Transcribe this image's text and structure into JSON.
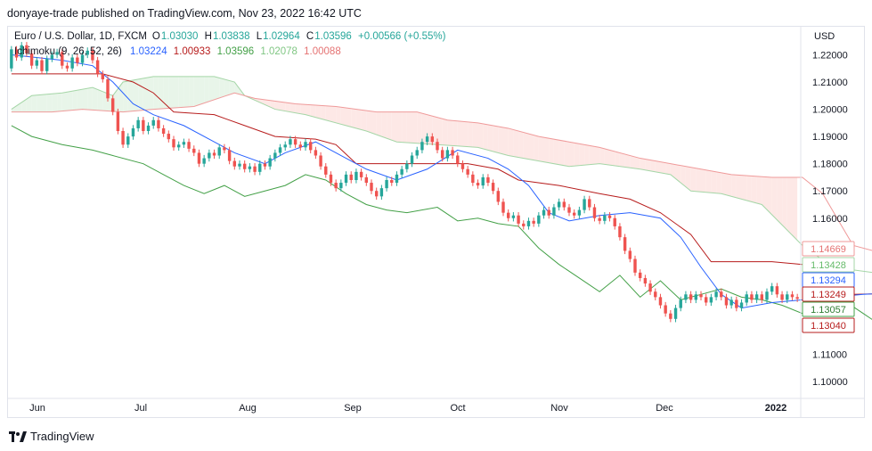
{
  "header": {
    "published": "donyaye-trade published on TradingView.com, Nov 23, 2022 16:42 UTC"
  },
  "legend": {
    "symbol": "Euro / U.S. Dollar, 1D, FXCM",
    "open_label": "O",
    "open": "1.03030",
    "high_label": "H",
    "high": "1.03838",
    "low_label": "L",
    "low": "1.02964",
    "close_label": "C",
    "close": "1.03596",
    "change": "+0.00566 (+0.55%)",
    "indicator": "Ichimoku (9, 26, 52, 26)",
    "ind_values": [
      "1.03224",
      "1.00933",
      "1.03596",
      "1.02078",
      "1.00088"
    ]
  },
  "footer": {
    "brand": "TradingView"
  },
  "colors": {
    "conversion": "#2962ff",
    "base": "#b71c1c",
    "lagging": "#43a047",
    "span_a": "#a5d6a7",
    "span_b": "#ef9a9a",
    "cloud_bull": "#e8f5e9",
    "cloud_bear": "#fde8e6",
    "candle_up": "#26a69a",
    "candle_down": "#ef5350"
  },
  "chart_data": {
    "type": "candlestick",
    "y_unit": "USD",
    "ylim": [
      1.0938,
      1.2303
    ],
    "y_ticks": [
      "1.22000",
      "1.21000",
      "1.20000",
      "1.19000",
      "1.18000",
      "1.17000",
      "1.16000",
      "1.11000",
      "1.10000"
    ],
    "x_ticks": [
      "Jun",
      "Jul",
      "Aug",
      "Sep",
      "Oct",
      "Nov",
      "Dec",
      "2022"
    ],
    "x_tick_bold": "2022",
    "right_labels": [
      {
        "text": "1.14669",
        "kind": "span_b"
      },
      {
        "text": "1.13428",
        "kind": "span_a"
      },
      {
        "text": "1.13294",
        "kind": "conversion"
      },
      {
        "text": "1.13249",
        "kind": "base"
      },
      {
        "text": "1.13057",
        "kind": "lagging"
      },
      {
        "text": "1.13040",
        "kind": "close"
      }
    ],
    "candles": [
      {
        "o": 1.215,
        "c": 1.222
      },
      {
        "o": 1.222,
        "c": 1.219
      },
      {
        "o": 1.219,
        "c": 1.2235
      },
      {
        "o": 1.2235,
        "c": 1.2205
      },
      {
        "o": 1.2205,
        "c": 1.216
      },
      {
        "o": 1.216,
        "c": 1.218
      },
      {
        "o": 1.218,
        "c": 1.214
      },
      {
        "o": 1.214,
        "c": 1.2185
      },
      {
        "o": 1.2185,
        "c": 1.22
      },
      {
        "o": 1.22,
        "c": 1.221
      },
      {
        "o": 1.221,
        "c": 1.216
      },
      {
        "o": 1.216,
        "c": 1.215
      },
      {
        "o": 1.215,
        "c": 1.219
      },
      {
        "o": 1.219,
        "c": 1.217
      },
      {
        "o": 1.217,
        "c": 1.22
      },
      {
        "o": 1.22,
        "c": 1.2215
      },
      {
        "o": 1.2215,
        "c": 1.218
      },
      {
        "o": 1.218,
        "c": 1.213
      },
      {
        "o": 1.213,
        "c": 1.211
      },
      {
        "o": 1.211,
        "c": 1.204
      },
      {
        "o": 1.204,
        "c": 1.199
      },
      {
        "o": 1.199,
        "c": 1.192
      },
      {
        "o": 1.192,
        "c": 1.187
      },
      {
        "o": 1.187,
        "c": 1.19
      },
      {
        "o": 1.19,
        "c": 1.193
      },
      {
        "o": 1.193,
        "c": 1.196
      },
      {
        "o": 1.196,
        "c": 1.192
      },
      {
        "o": 1.192,
        "c": 1.194
      },
      {
        "o": 1.194,
        "c": 1.196
      },
      {
        "o": 1.196,
        "c": 1.193
      },
      {
        "o": 1.193,
        "c": 1.191
      },
      {
        "o": 1.191,
        "c": 1.189
      },
      {
        "o": 1.189,
        "c": 1.186
      },
      {
        "o": 1.186,
        "c": 1.187
      },
      {
        "o": 1.187,
        "c": 1.188
      },
      {
        "o": 1.188,
        "c": 1.1855
      },
      {
        "o": 1.1855,
        "c": 1.184
      },
      {
        "o": 1.184,
        "c": 1.18
      },
      {
        "o": 1.18,
        "c": 1.182
      },
      {
        "o": 1.182,
        "c": 1.184
      },
      {
        "o": 1.184,
        "c": 1.183
      },
      {
        "o": 1.183,
        "c": 1.186
      },
      {
        "o": 1.186,
        "c": 1.185
      },
      {
        "o": 1.185,
        "c": 1.181
      },
      {
        "o": 1.181,
        "c": 1.179
      },
      {
        "o": 1.179,
        "c": 1.18
      },
      {
        "o": 1.18,
        "c": 1.178
      },
      {
        "o": 1.178,
        "c": 1.179
      },
      {
        "o": 1.179,
        "c": 1.177
      },
      {
        "o": 1.177,
        "c": 1.18
      },
      {
        "o": 1.18,
        "c": 1.179
      },
      {
        "o": 1.179,
        "c": 1.182
      },
      {
        "o": 1.182,
        "c": 1.184
      },
      {
        "o": 1.184,
        "c": 1.186
      },
      {
        "o": 1.186,
        "c": 1.187
      },
      {
        "o": 1.187,
        "c": 1.189
      },
      {
        "o": 1.189,
        "c": 1.187
      },
      {
        "o": 1.187,
        "c": 1.186
      },
      {
        "o": 1.186,
        "c": 1.188
      },
      {
        "o": 1.188,
        "c": 1.185
      },
      {
        "o": 1.185,
        "c": 1.183
      },
      {
        "o": 1.183,
        "c": 1.179
      },
      {
        "o": 1.179,
        "c": 1.176
      },
      {
        "o": 1.176,
        "c": 1.173
      },
      {
        "o": 1.173,
        "c": 1.171
      },
      {
        "o": 1.171,
        "c": 1.173
      },
      {
        "o": 1.173,
        "c": 1.176
      },
      {
        "o": 1.176,
        "c": 1.174
      },
      {
        "o": 1.174,
        "c": 1.177
      },
      {
        "o": 1.177,
        "c": 1.175
      },
      {
        "o": 1.175,
        "c": 1.173
      },
      {
        "o": 1.173,
        "c": 1.17
      },
      {
        "o": 1.17,
        "c": 1.168
      },
      {
        "o": 1.168,
        "c": 1.171
      },
      {
        "o": 1.171,
        "c": 1.174
      },
      {
        "o": 1.174,
        "c": 1.173
      },
      {
        "o": 1.173,
        "c": 1.176
      },
      {
        "o": 1.176,
        "c": 1.178
      },
      {
        "o": 1.178,
        "c": 1.18
      },
      {
        "o": 1.18,
        "c": 1.183
      },
      {
        "o": 1.183,
        "c": 1.185
      },
      {
        "o": 1.185,
        "c": 1.188
      },
      {
        "o": 1.188,
        "c": 1.19
      },
      {
        "o": 1.19,
        "c": 1.188
      },
      {
        "o": 1.188,
        "c": 1.185
      },
      {
        "o": 1.185,
        "c": 1.182
      },
      {
        "o": 1.182,
        "c": 1.185
      },
      {
        "o": 1.185,
        "c": 1.183
      },
      {
        "o": 1.183,
        "c": 1.18
      },
      {
        "o": 1.18,
        "c": 1.178
      },
      {
        "o": 1.178,
        "c": 1.176
      },
      {
        "o": 1.176,
        "c": 1.173
      },
      {
        "o": 1.173,
        "c": 1.172
      },
      {
        "o": 1.172,
        "c": 1.175
      },
      {
        "o": 1.175,
        "c": 1.173
      },
      {
        "o": 1.173,
        "c": 1.17
      },
      {
        "o": 1.17,
        "c": 1.166
      },
      {
        "o": 1.166,
        "c": 1.162
      },
      {
        "o": 1.162,
        "c": 1.16
      },
      {
        "o": 1.16,
        "c": 1.161
      },
      {
        "o": 1.161,
        "c": 1.158
      },
      {
        "o": 1.158,
        "c": 1.157
      },
      {
        "o": 1.157,
        "c": 1.159
      },
      {
        "o": 1.159,
        "c": 1.158
      },
      {
        "o": 1.158,
        "c": 1.161
      },
      {
        "o": 1.161,
        "c": 1.163
      },
      {
        "o": 1.163,
        "c": 1.161
      },
      {
        "o": 1.161,
        "c": 1.164
      },
      {
        "o": 1.164,
        "c": 1.166
      },
      {
        "o": 1.166,
        "c": 1.164
      },
      {
        "o": 1.164,
        "c": 1.162
      },
      {
        "o": 1.162,
        "c": 1.161
      },
      {
        "o": 1.161,
        "c": 1.163
      },
      {
        "o": 1.163,
        "c": 1.167
      },
      {
        "o": 1.167,
        "c": 1.164
      },
      {
        "o": 1.164,
        "c": 1.16
      },
      {
        "o": 1.16,
        "c": 1.159
      },
      {
        "o": 1.159,
        "c": 1.161
      },
      {
        "o": 1.161,
        "c": 1.16
      },
      {
        "o": 1.16,
        "c": 1.157
      },
      {
        "o": 1.157,
        "c": 1.153
      },
      {
        "o": 1.153,
        "c": 1.148
      },
      {
        "o": 1.148,
        "c": 1.145
      },
      {
        "o": 1.145,
        "c": 1.14
      },
      {
        "o": 1.14,
        "c": 1.138
      },
      {
        "o": 1.138,
        "c": 1.136
      },
      {
        "o": 1.136,
        "c": 1.133
      },
      {
        "o": 1.133,
        "c": 1.131
      },
      {
        "o": 1.131,
        "c": 1.128
      },
      {
        "o": 1.128,
        "c": 1.125
      },
      {
        "o": 1.125,
        "c": 1.123
      },
      {
        "o": 1.123,
        "c": 1.127
      },
      {
        "o": 1.127,
        "c": 1.13
      },
      {
        "o": 1.13,
        "c": 1.132
      },
      {
        "o": 1.132,
        "c": 1.13
      },
      {
        "o": 1.13,
        "c": 1.132
      },
      {
        "o": 1.132,
        "c": 1.131
      },
      {
        "o": 1.131,
        "c": 1.129
      },
      {
        "o": 1.129,
        "c": 1.131
      },
      {
        "o": 1.131,
        "c": 1.133
      },
      {
        "o": 1.133,
        "c": 1.131
      },
      {
        "o": 1.131,
        "c": 1.128
      },
      {
        "o": 1.128,
        "c": 1.13
      },
      {
        "o": 1.13,
        "c": 1.127
      },
      {
        "o": 1.127,
        "c": 1.129
      },
      {
        "o": 1.129,
        "c": 1.132
      },
      {
        "o": 1.132,
        "c": 1.13
      },
      {
        "o": 1.13,
        "c": 1.132
      },
      {
        "o": 1.132,
        "c": 1.13
      },
      {
        "o": 1.13,
        "c": 1.133
      },
      {
        "o": 1.133,
        "c": 1.135
      },
      {
        "o": 1.135,
        "c": 1.132
      },
      {
        "o": 1.132,
        "c": 1.13
      },
      {
        "o": 1.13,
        "c": 1.132
      },
      {
        "o": 1.132,
        "c": 1.131
      },
      {
        "o": 1.131,
        "c": 1.1304
      }
    ],
    "conversion": [
      [
        0,
        1.22
      ],
      [
        10,
        1.218
      ],
      [
        16,
        1.216
      ],
      [
        20,
        1.21
      ],
      [
        24,
        1.202
      ],
      [
        28,
        1.198
      ],
      [
        34,
        1.194
      ],
      [
        40,
        1.188
      ],
      [
        44,
        1.184
      ],
      [
        50,
        1.18
      ],
      [
        54,
        1.184
      ],
      [
        60,
        1.188
      ],
      [
        66,
        1.182
      ],
      [
        70,
        1.178
      ],
      [
        76,
        1.174
      ],
      [
        82,
        1.178
      ],
      [
        88,
        1.185
      ],
      [
        94,
        1.182
      ],
      [
        98,
        1.178
      ],
      [
        102,
        1.172
      ],
      [
        106,
        1.162
      ],
      [
        110,
        1.159
      ],
      [
        116,
        1.161
      ],
      [
        122,
        1.162
      ],
      [
        128,
        1.16
      ],
      [
        132,
        1.153
      ],
      [
        136,
        1.142
      ],
      [
        140,
        1.132
      ],
      [
        144,
        1.127
      ],
      [
        150,
        1.129
      ],
      [
        156,
        1.13
      ],
      [
        162,
        1.131
      ],
      [
        168,
        1.132
      ],
      [
        176,
        1.1329
      ]
    ],
    "base": [
      [
        0,
        1.213
      ],
      [
        10,
        1.213
      ],
      [
        18,
        1.213
      ],
      [
        24,
        1.21
      ],
      [
        28,
        1.206
      ],
      [
        32,
        1.199
      ],
      [
        40,
        1.198
      ],
      [
        46,
        1.194
      ],
      [
        52,
        1.19
      ],
      [
        60,
        1.189
      ],
      [
        64,
        1.187
      ],
      [
        68,
        1.18
      ],
      [
        78,
        1.18
      ],
      [
        90,
        1.18
      ],
      [
        96,
        1.178
      ],
      [
        100,
        1.174
      ],
      [
        108,
        1.172
      ],
      [
        116,
        1.169
      ],
      [
        122,
        1.167
      ],
      [
        128,
        1.162
      ],
      [
        134,
        1.154
      ],
      [
        138,
        1.144
      ],
      [
        150,
        1.144
      ],
      [
        156,
        1.143
      ],
      [
        160,
        1.134
      ],
      [
        166,
        1.132
      ],
      [
        176,
        1.1325
      ]
    ],
    "span_a": [
      [
        0,
        1.2
      ],
      [
        4,
        1.205
      ],
      [
        10,
        1.206
      ],
      [
        16,
        1.208
      ],
      [
        20,
        1.205
      ],
      [
        22,
        1.21
      ],
      [
        28,
        1.212
      ],
      [
        40,
        1.212
      ],
      [
        44,
        1.21
      ],
      [
        46,
        1.205
      ],
      [
        52,
        1.2
      ],
      [
        58,
        1.198
      ],
      [
        62,
        1.196
      ],
      [
        66,
        1.194
      ],
      [
        70,
        1.192
      ],
      [
        76,
        1.188
      ],
      [
        84,
        1.187
      ],
      [
        92,
        1.186
      ],
      [
        98,
        1.183
      ],
      [
        104,
        1.181
      ],
      [
        110,
        1.179
      ],
      [
        116,
        1.18
      ],
      [
        124,
        1.178
      ],
      [
        130,
        1.176
      ],
      [
        134,
        1.17
      ],
      [
        140,
        1.169
      ],
      [
        148,
        1.165
      ],
      [
        156,
        1.15
      ],
      [
        162,
        1.142
      ],
      [
        170,
        1.14
      ],
      [
        176,
        1.1343
      ]
    ],
    "span_b": [
      [
        0,
        1.199
      ],
      [
        8,
        1.199
      ],
      [
        14,
        1.2
      ],
      [
        22,
        1.199
      ],
      [
        28,
        1.2
      ],
      [
        36,
        1.201
      ],
      [
        44,
        1.206
      ],
      [
        48,
        1.204
      ],
      [
        56,
        1.202
      ],
      [
        64,
        1.201
      ],
      [
        72,
        1.199
      ],
      [
        80,
        1.199
      ],
      [
        86,
        1.196
      ],
      [
        92,
        1.195
      ],
      [
        98,
        1.193
      ],
      [
        104,
        1.19
      ],
      [
        110,
        1.188
      ],
      [
        116,
        1.186
      ],
      [
        124,
        1.182
      ],
      [
        130,
        1.18
      ],
      [
        136,
        1.178
      ],
      [
        142,
        1.176
      ],
      [
        150,
        1.175
      ],
      [
        156,
        1.175
      ],
      [
        160,
        1.169
      ],
      [
        166,
        1.15
      ],
      [
        172,
        1.147
      ],
      [
        176,
        1.1467
      ]
    ],
    "lagging": [
      [
        0,
        1.194
      ],
      [
        4,
        1.19
      ],
      [
        10,
        1.187
      ],
      [
        16,
        1.185
      ],
      [
        20,
        1.183
      ],
      [
        26,
        1.18
      ],
      [
        30,
        1.176
      ],
      [
        34,
        1.172
      ],
      [
        38,
        1.169
      ],
      [
        42,
        1.172
      ],
      [
        46,
        1.168
      ],
      [
        50,
        1.17
      ],
      [
        54,
        1.172
      ],
      [
        58,
        1.176
      ],
      [
        62,
        1.174
      ],
      [
        66,
        1.169
      ],
      [
        70,
        1.165
      ],
      [
        74,
        1.163
      ],
      [
        78,
        1.162
      ],
      [
        84,
        1.164
      ],
      [
        88,
        1.159
      ],
      [
        92,
        1.16
      ],
      [
        96,
        1.158
      ],
      [
        100,
        1.157
      ],
      [
        104,
        1.149
      ],
      [
        108,
        1.143
      ],
      [
        112,
        1.138
      ],
      [
        116,
        1.133
      ],
      [
        120,
        1.139
      ],
      [
        124,
        1.131
      ],
      [
        128,
        1.137
      ],
      [
        132,
        1.13
      ],
      [
        136,
        1.132
      ],
      [
        140,
        1.134
      ],
      [
        144,
        1.131
      ],
      [
        148,
        1.13
      ],
      [
        152,
        1.128
      ],
      [
        156,
        1.125
      ],
      [
        160,
        1.127
      ],
      [
        164,
        1.13
      ],
      [
        168,
        1.125
      ],
      [
        172,
        1.12
      ],
      [
        176,
        1.1306
      ]
    ]
  }
}
